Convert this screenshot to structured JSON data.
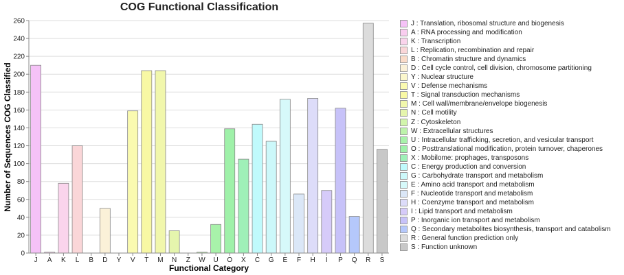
{
  "chart_data": {
    "type": "bar",
    "title": "COG Functional Classification",
    "xlabel": "Functional Category",
    "ylabel": "Number of Sequences COG Classified",
    "ylim": [
      0,
      260
    ],
    "yticks": [
      0,
      20,
      40,
      60,
      80,
      100,
      120,
      140,
      160,
      180,
      200,
      220,
      240,
      260
    ],
    "grid": true,
    "legend_position": "right",
    "categories": [
      "J",
      "A",
      "K",
      "L",
      "B",
      "D",
      "Y",
      "V",
      "T",
      "M",
      "N",
      "Z",
      "W",
      "U",
      "O",
      "X",
      "C",
      "G",
      "E",
      "F",
      "H",
      "I",
      "P",
      "Q",
      "R",
      "S"
    ],
    "values": [
      210,
      1,
      78,
      120,
      0,
      50,
      0,
      159,
      204,
      204,
      25,
      0,
      1,
      32,
      139,
      105,
      144,
      125,
      172,
      66,
      173,
      70,
      162,
      41,
      257,
      116
    ],
    "colors": [
      "#f5c2f7",
      "#f9cdef",
      "#fad4ec",
      "#fad6d8",
      "#fadbc8",
      "#fbf1d8",
      "#fbf7cc",
      "#fafab0",
      "#f8f8a4",
      "#f1f7ac",
      "#e5f5ad",
      "#d2f5ac",
      "#bdf3ab",
      "#a8f2aa",
      "#9ff1a9",
      "#9ff0b8",
      "#c0fafc",
      "#ccf8fa",
      "#d6f9fa",
      "#dbe7f7",
      "#dddcf9",
      "#d6cbf9",
      "#c7c2f9",
      "#b5c8fb",
      "#dcdcdc",
      "#c8c8c8"
    ],
    "legend": [
      "J : Translation, ribosomal structure and biogenesis",
      "A : RNA processing and modification",
      "K : Transcription",
      "L : Replication, recombination and repair",
      "B : Chromatin structure and dynamics",
      "D : Cell cycle control, cell division, chromosome partitioning",
      "Y : Nuclear structure",
      "V : Defense mechanisms",
      "T : Signal transduction mechanisms",
      "M : Cell wall/membrane/envelope biogenesis",
      "N : Cell motility",
      "Z : Cytoskeleton",
      "W : Extracellular structures",
      "U : Intracellular trafficking, secretion, and vesicular transport",
      "O : Posttranslational modification, protein turnover, chaperones",
      "X : Mobilome: prophages, transposons",
      "C : Energy production and conversion",
      "G : Carbohydrate transport and metabolism",
      "E : Amino acid transport and metabolism",
      "F : Nucleotide transport and metabolism",
      "H : Coenzyme transport and metabolism",
      "I : Lipid transport and metabolism",
      "P : Inorganic ion transport and metabolism",
      "Q : Secondary metabolites biosynthesis, transport and catabolism",
      "R : General function prediction only",
      "S : Function unknown"
    ]
  }
}
